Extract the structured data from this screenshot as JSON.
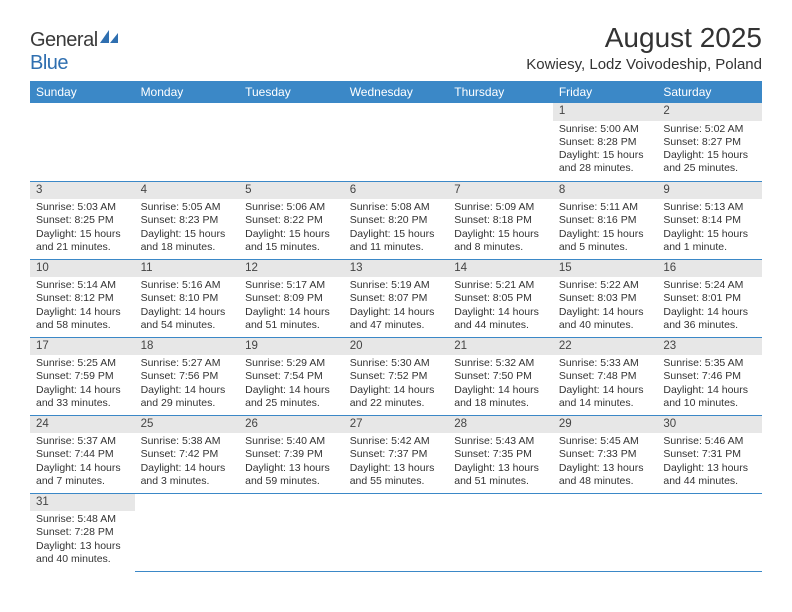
{
  "brand": {
    "name1": "General",
    "name2": "Blue"
  },
  "title": "August 2025",
  "location": "Kowiesy, Lodz Voivodeship, Poland",
  "colors": {
    "header_bg": "#3b88c7",
    "header_fg": "#ffffff",
    "daynum_bg": "#e7e7e7",
    "rule": "#3b88c7",
    "text": "#333333"
  },
  "weekdays": [
    "Sunday",
    "Monday",
    "Tuesday",
    "Wednesday",
    "Thursday",
    "Friday",
    "Saturday"
  ],
  "weeks": [
    [
      null,
      null,
      null,
      null,
      null,
      {
        "n": "1",
        "sr": "5:00 AM",
        "ss": "8:28 PM",
        "dl": "15 hours and 28 minutes."
      },
      {
        "n": "2",
        "sr": "5:02 AM",
        "ss": "8:27 PM",
        "dl": "15 hours and 25 minutes."
      }
    ],
    [
      {
        "n": "3",
        "sr": "5:03 AM",
        "ss": "8:25 PM",
        "dl": "15 hours and 21 minutes."
      },
      {
        "n": "4",
        "sr": "5:05 AM",
        "ss": "8:23 PM",
        "dl": "15 hours and 18 minutes."
      },
      {
        "n": "5",
        "sr": "5:06 AM",
        "ss": "8:22 PM",
        "dl": "15 hours and 15 minutes."
      },
      {
        "n": "6",
        "sr": "5:08 AM",
        "ss": "8:20 PM",
        "dl": "15 hours and 11 minutes."
      },
      {
        "n": "7",
        "sr": "5:09 AM",
        "ss": "8:18 PM",
        "dl": "15 hours and 8 minutes."
      },
      {
        "n": "8",
        "sr": "5:11 AM",
        "ss": "8:16 PM",
        "dl": "15 hours and 5 minutes."
      },
      {
        "n": "9",
        "sr": "5:13 AM",
        "ss": "8:14 PM",
        "dl": "15 hours and 1 minute."
      }
    ],
    [
      {
        "n": "10",
        "sr": "5:14 AM",
        "ss": "8:12 PM",
        "dl": "14 hours and 58 minutes."
      },
      {
        "n": "11",
        "sr": "5:16 AM",
        "ss": "8:10 PM",
        "dl": "14 hours and 54 minutes."
      },
      {
        "n": "12",
        "sr": "5:17 AM",
        "ss": "8:09 PM",
        "dl": "14 hours and 51 minutes."
      },
      {
        "n": "13",
        "sr": "5:19 AM",
        "ss": "8:07 PM",
        "dl": "14 hours and 47 minutes."
      },
      {
        "n": "14",
        "sr": "5:21 AM",
        "ss": "8:05 PM",
        "dl": "14 hours and 44 minutes."
      },
      {
        "n": "15",
        "sr": "5:22 AM",
        "ss": "8:03 PM",
        "dl": "14 hours and 40 minutes."
      },
      {
        "n": "16",
        "sr": "5:24 AM",
        "ss": "8:01 PM",
        "dl": "14 hours and 36 minutes."
      }
    ],
    [
      {
        "n": "17",
        "sr": "5:25 AM",
        "ss": "7:59 PM",
        "dl": "14 hours and 33 minutes."
      },
      {
        "n": "18",
        "sr": "5:27 AM",
        "ss": "7:56 PM",
        "dl": "14 hours and 29 minutes."
      },
      {
        "n": "19",
        "sr": "5:29 AM",
        "ss": "7:54 PM",
        "dl": "14 hours and 25 minutes."
      },
      {
        "n": "20",
        "sr": "5:30 AM",
        "ss": "7:52 PM",
        "dl": "14 hours and 22 minutes."
      },
      {
        "n": "21",
        "sr": "5:32 AM",
        "ss": "7:50 PM",
        "dl": "14 hours and 18 minutes."
      },
      {
        "n": "22",
        "sr": "5:33 AM",
        "ss": "7:48 PM",
        "dl": "14 hours and 14 minutes."
      },
      {
        "n": "23",
        "sr": "5:35 AM",
        "ss": "7:46 PM",
        "dl": "14 hours and 10 minutes."
      }
    ],
    [
      {
        "n": "24",
        "sr": "5:37 AM",
        "ss": "7:44 PM",
        "dl": "14 hours and 7 minutes."
      },
      {
        "n": "25",
        "sr": "5:38 AM",
        "ss": "7:42 PM",
        "dl": "14 hours and 3 minutes."
      },
      {
        "n": "26",
        "sr": "5:40 AM",
        "ss": "7:39 PM",
        "dl": "13 hours and 59 minutes."
      },
      {
        "n": "27",
        "sr": "5:42 AM",
        "ss": "7:37 PM",
        "dl": "13 hours and 55 minutes."
      },
      {
        "n": "28",
        "sr": "5:43 AM",
        "ss": "7:35 PM",
        "dl": "13 hours and 51 minutes."
      },
      {
        "n": "29",
        "sr": "5:45 AM",
        "ss": "7:33 PM",
        "dl": "13 hours and 48 minutes."
      },
      {
        "n": "30",
        "sr": "5:46 AM",
        "ss": "7:31 PM",
        "dl": "13 hours and 44 minutes."
      }
    ],
    [
      {
        "n": "31",
        "sr": "5:48 AM",
        "ss": "7:28 PM",
        "dl": "13 hours and 40 minutes."
      },
      null,
      null,
      null,
      null,
      null,
      null
    ]
  ],
  "labels": {
    "sunrise": "Sunrise: ",
    "sunset": "Sunset: ",
    "daylight": "Daylight: "
  }
}
